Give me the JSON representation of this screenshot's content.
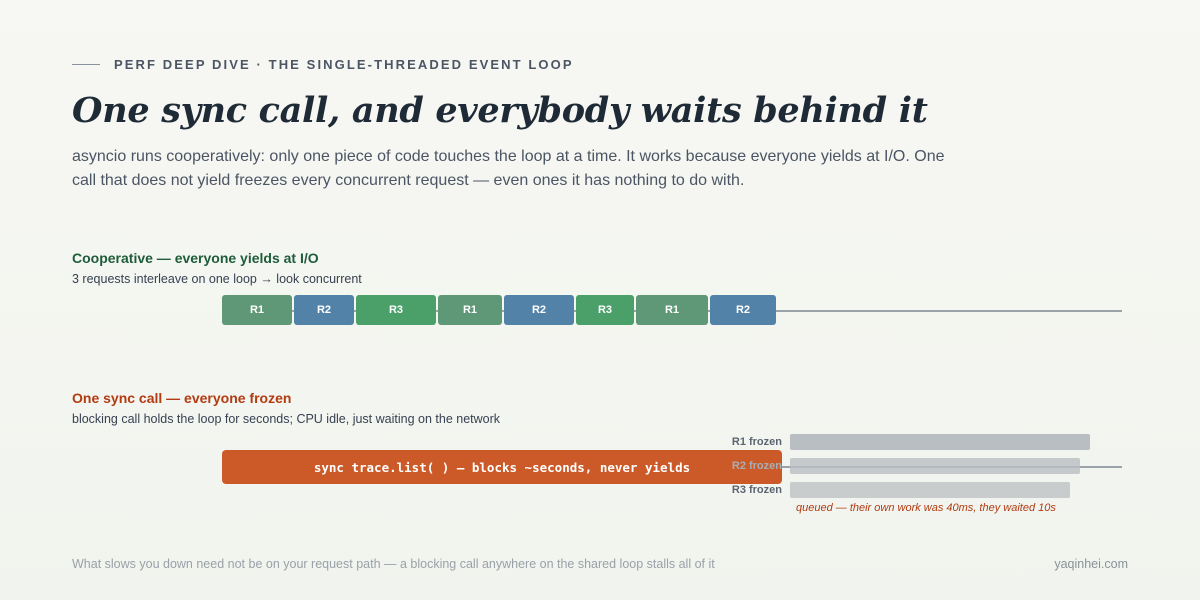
{
  "header": {
    "eyebrow": "PERF DEEP DIVE · THE SINGLE-THREADED EVENT LOOP",
    "title": "One sync call, and everybody waits behind it",
    "subtitle": "asyncio runs cooperatively: only one piece of code touches the loop at a time. It works because everyone yields at I/O. One call that does not yield freezes every concurrent request — even ones it has nothing to do with."
  },
  "cooperative": {
    "title": "Cooperative — everyone yields at I/O",
    "note": "3 requests interleave on one loop → look concurrent",
    "segments": [
      {
        "label": "R1",
        "request": "R1"
      },
      {
        "label": "R2",
        "request": "R2"
      },
      {
        "label": "R3",
        "request": "R3"
      },
      {
        "label": "R1",
        "request": "R1"
      },
      {
        "label": "R2",
        "request": "R2"
      },
      {
        "label": "R3",
        "request": "R3"
      },
      {
        "label": "R1",
        "request": "R1"
      },
      {
        "label": "R2",
        "request": "R2"
      }
    ]
  },
  "blocking": {
    "title": "One sync call — everyone frozen",
    "note": "blocking call holds the loop for seconds; CPU idle, just waiting on the network",
    "sync_label": "sync trace.list( ) — blocks ~seconds, never yields",
    "frozen": [
      {
        "label": "R1 frozen"
      },
      {
        "label": "R2 frozen"
      },
      {
        "label": "R3 frozen"
      }
    ],
    "queued_note": "queued — their own work was 40ms, they waited 10s"
  },
  "colors": {
    "R1": "#5f9877",
    "R2": "#5282a8",
    "R3": "#4ba06a",
    "sync": "#cc5a28",
    "frozen": "#b9bec2"
  },
  "footer": {
    "caption": "What slows you down need not be on your request path — a blocking call anywhere on the shared loop stalls all of it",
    "site": "yaqinhei.com"
  }
}
